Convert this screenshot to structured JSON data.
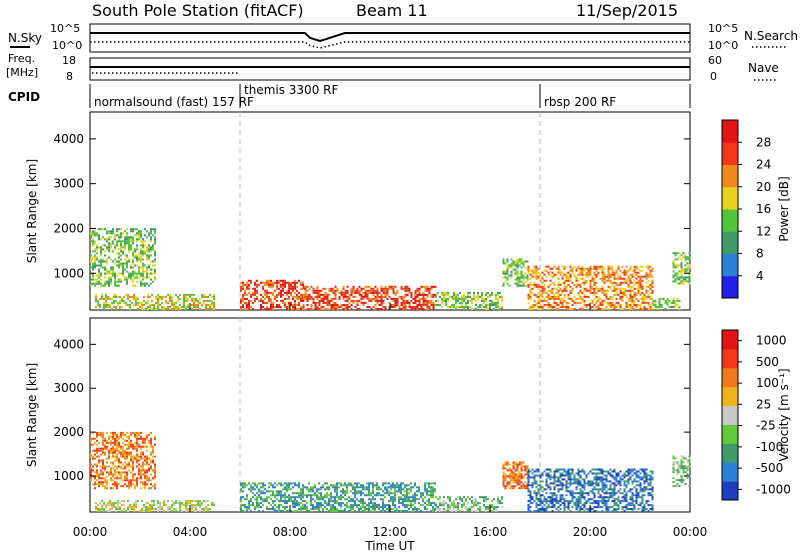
{
  "header": {
    "title": "South Pole Station (fitACF)",
    "beam": "Beam 11",
    "date": "11/Sep/2015"
  },
  "strip": {
    "nsky_label": "N.Sky",
    "nsearch_label": "N.Search",
    "noise_ticks_left": [
      "10^5",
      "10^0"
    ],
    "noise_ticks_right": [
      "10^5",
      "10^0"
    ],
    "freq_label_1": "Freq.",
    "freq_label_2": "[MHz]",
    "freq_ticks": [
      "18",
      "8"
    ],
    "nave_label": "Nave",
    "nave_ticks": [
      "60",
      "0"
    ],
    "cpid_label": "CPID",
    "cpid_segments": [
      {
        "label": "normalsound (fast) 157 RF",
        "start_hour": 0
      },
      {
        "label": "themis 3300 RF",
        "start_hour": 6
      },
      {
        "label": "rbsp 200 RF",
        "start_hour": 18
      }
    ]
  },
  "chart_data": [
    {
      "type": "heatmap",
      "panel": "power",
      "ylabel": "Slant Range [km]",
      "xlabel": "Time UT",
      "xlim": [
        0,
        24
      ],
      "ylim": [
        180,
        4600
      ],
      "yticks": [
        1000,
        2000,
        3000,
        4000
      ],
      "xtick_labels": [
        "00:00",
        "04:00",
        "08:00",
        "12:00",
        "16:00",
        "20:00",
        "00:00"
      ],
      "colorbar": {
        "label": "Power [dB]",
        "ticks": [
          "4",
          "8",
          "12",
          "16",
          "20",
          "24",
          "28"
        ],
        "colors": [
          "#1f1fe6",
          "#2e7fd6",
          "#3f9a6a",
          "#52c43b",
          "#e6d21f",
          "#f08a1a",
          "#f23a1a",
          "#e01414"
        ]
      },
      "echo_regions": [
        {
          "t0": 0.0,
          "t1": 2.6,
          "r0": 700,
          "r1": 2000,
          "level": 3
        },
        {
          "t0": 0.2,
          "t1": 5.0,
          "r0": 180,
          "r1": 500,
          "level": 4
        },
        {
          "t0": 6.0,
          "t1": 8.5,
          "r0": 180,
          "r1": 850,
          "level": 6
        },
        {
          "t0": 8.5,
          "t1": 13.8,
          "r0": 180,
          "r1": 700,
          "level": 6
        },
        {
          "t0": 13.8,
          "t1": 16.5,
          "r0": 180,
          "r1": 550,
          "level": 3
        },
        {
          "t0": 16.5,
          "t1": 17.5,
          "r0": 700,
          "r1": 1300,
          "level": 3
        },
        {
          "t0": 17.5,
          "t1": 22.5,
          "r0": 180,
          "r1": 1150,
          "level": 5
        },
        {
          "t0": 22.5,
          "t1": 23.6,
          "r0": 180,
          "r1": 450,
          "level": 3
        },
        {
          "t0": 23.3,
          "t1": 24.0,
          "r0": 750,
          "r1": 1450,
          "level": 3
        }
      ]
    },
    {
      "type": "heatmap",
      "panel": "velocity",
      "ylabel": "Slant Range [km]",
      "xlabel": "Time UT",
      "xlim": [
        0,
        24
      ],
      "ylim": [
        180,
        4600
      ],
      "yticks": [
        1000,
        2000,
        3000,
        4000
      ],
      "xtick_labels": [
        "00:00",
        "04:00",
        "08:00",
        "12:00",
        "16:00",
        "20:00",
        "00:00"
      ],
      "colorbar": {
        "label": "Velocity [m s⁻¹]",
        "ticks": [
          "1000",
          "500",
          "100",
          "25",
          "-25",
          "-100",
          "-500",
          "-1000"
        ],
        "colors": [
          "#1f3fbf",
          "#2e7fd6",
          "#3f9a6a",
          "#62c93b",
          "#c8c8c8",
          "#f0b21a",
          "#f07a1a",
          "#f23a1a",
          "#e01414"
        ]
      },
      "echo_regions": [
        {
          "t0": 0.0,
          "t1": 2.6,
          "r0": 700,
          "r1": 2000,
          "level": 6
        },
        {
          "t0": 0.2,
          "t1": 5.0,
          "r0": 180,
          "r1": 450,
          "level": 4
        },
        {
          "t0": 6.0,
          "t1": 13.8,
          "r0": 180,
          "r1": 850,
          "level": 2
        },
        {
          "t0": 13.8,
          "t1": 16.5,
          "r0": 180,
          "r1": 500,
          "level": 3
        },
        {
          "t0": 16.5,
          "t1": 17.5,
          "r0": 700,
          "r1": 1300,
          "level": 6
        },
        {
          "t0": 17.5,
          "t1": 22.5,
          "r0": 180,
          "r1": 1150,
          "level": 1
        },
        {
          "t0": 23.3,
          "t1": 24.0,
          "r0": 750,
          "r1": 1450,
          "level": 3
        }
      ]
    }
  ]
}
